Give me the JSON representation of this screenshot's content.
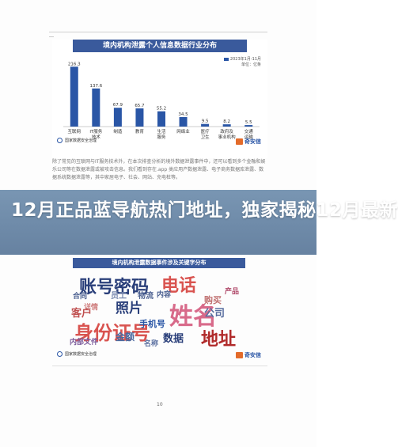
{
  "chart_data": {
    "type": "bar",
    "title": "境内机构泄露个人信息数据行业分布",
    "legend_note": "2023年1月-11月",
    "legend_unit": "单位：亿条",
    "categories": [
      "互联网",
      "IT服务 技术",
      "制造",
      "教育",
      "生活 服务",
      "网络业",
      "医疗 卫生",
      "政府及 事业机构",
      "交通 运输"
    ],
    "values": [
      216.3,
      137.6,
      67.9,
      65.7,
      55.2,
      34.5,
      9.5,
      8.2,
      5.5
    ],
    "value_labels": [
      "216.3",
      "137.6",
      "67.9",
      "65.7",
      "55.2",
      "34.5",
      "9.5",
      "8.2",
      "5.5"
    ],
    "ylim": [
      0,
      240
    ],
    "color": "#2a56a6"
  },
  "logos": {
    "left_text": "国家数据安全治理",
    "right_text": "奇安信"
  },
  "paragraph": "除了常见的互联网与IT服务技术外，在本次排查分析的境外数据泄露事件中，还可以看到多个金融和娱乐公司等在数据泄露或被攻击信息。我们看到存在.app 类应用产数据泄露、电子商务数据库泄露、数据系统数据泄露等，其中家居电子、社会、网站、充电桩等。",
  "headline": "12月正品蓝导航热门地址，独家揭秘12月最新",
  "banner2": "境内机构泄露数据事件涉及关键字分布",
  "word_cloud": [
    {
      "text": "账号密码",
      "color": "#2a3f7a"
    },
    {
      "text": "电话",
      "color": "#d9534f"
    },
    {
      "text": "姓名",
      "color": "#d86a8a"
    },
    {
      "text": "身份证号",
      "color": "#d9534f"
    },
    {
      "text": "地址",
      "color": "#b02a2a"
    },
    {
      "text": "照片",
      "color": "#2a3f7a"
    },
    {
      "text": "客户",
      "color": "#c05050"
    },
    {
      "text": "手机号",
      "color": "#2a56a6"
    },
    {
      "text": "公司",
      "color": "#5a6fa0"
    },
    {
      "text": "数据",
      "color": "#2a3f7a"
    },
    {
      "text": "金额",
      "color": "#4a6aa0"
    },
    {
      "text": "员工",
      "color": "#7a8ab0"
    },
    {
      "text": "物流",
      "color": "#4a5f90"
    },
    {
      "text": "内容",
      "color": "#4a5f90"
    },
    {
      "text": "合同",
      "color": "#4a5f90"
    },
    {
      "text": "购买",
      "color": "#c07070"
    },
    {
      "text": "详情",
      "color": "#d08080"
    },
    {
      "text": "内部文件",
      "color": "#7a5a9a"
    },
    {
      "text": "名称",
      "color": "#5a6fa0"
    },
    {
      "text": "产品",
      "color": "#b04a6a"
    }
  ],
  "page_number": "10"
}
